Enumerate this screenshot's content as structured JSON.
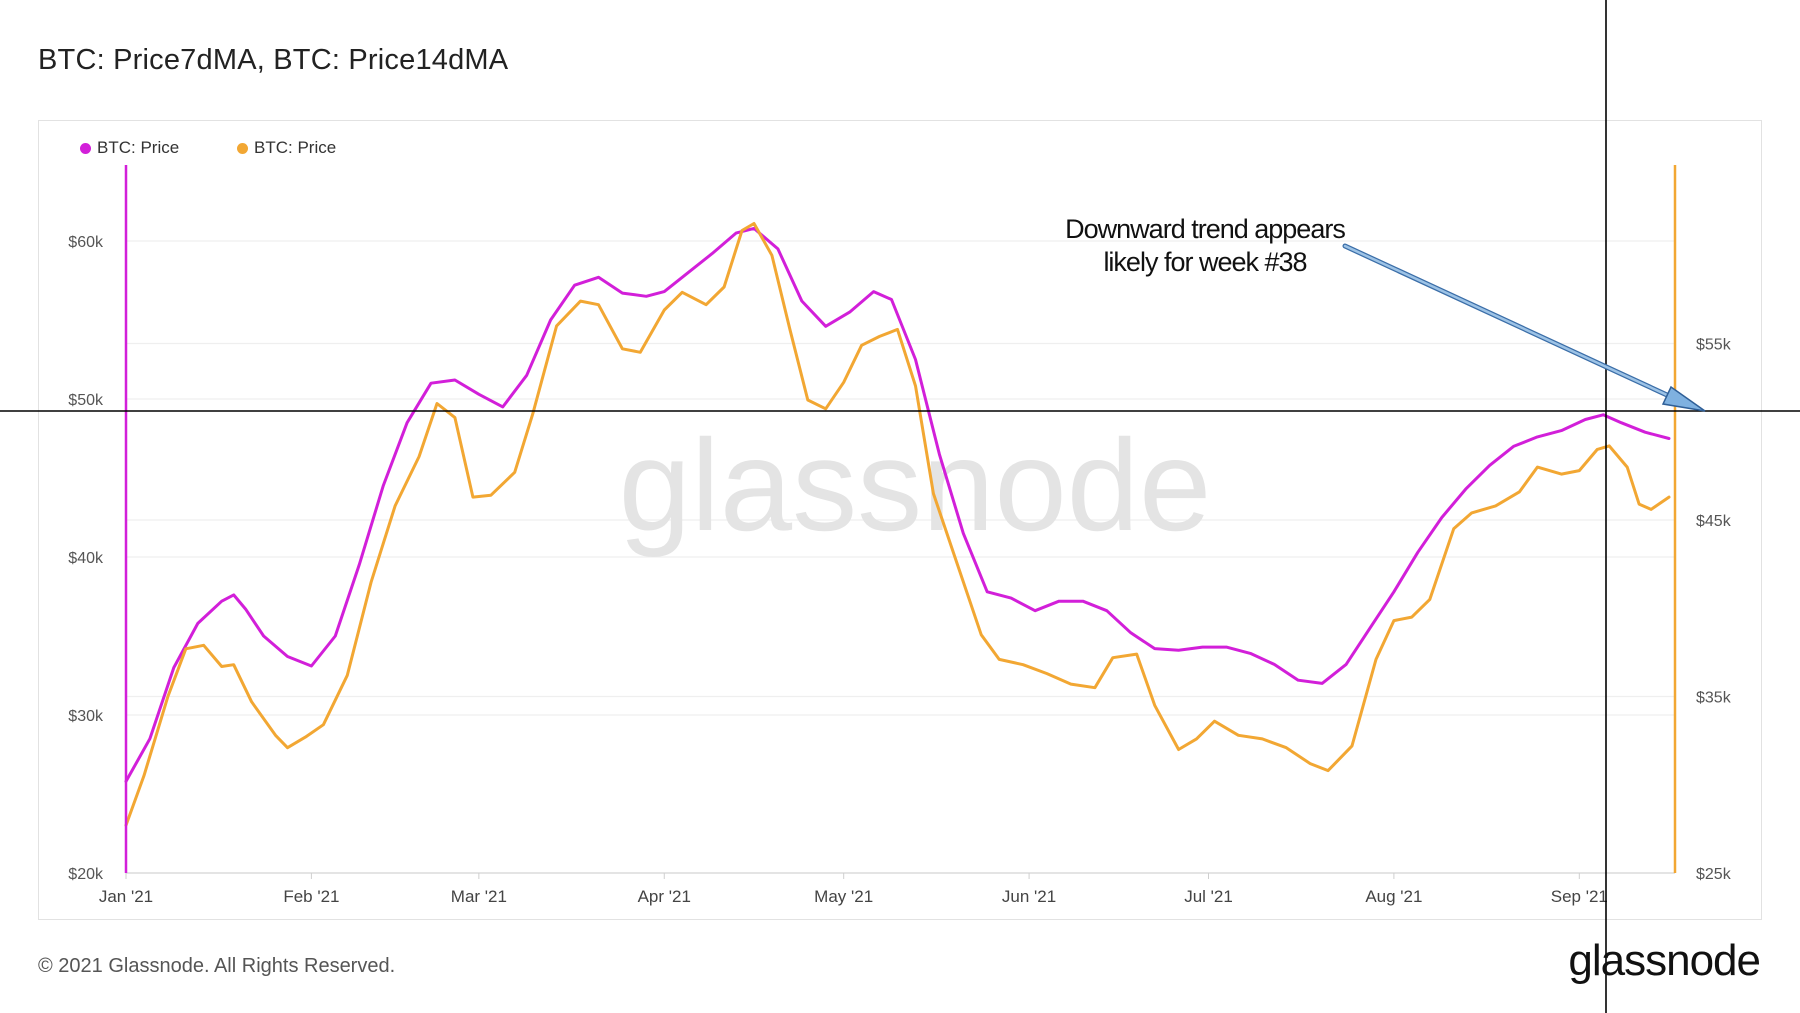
{
  "title": "BTC: Price7dMA, BTC: Price14dMA",
  "footer": "© 2021 Glassnode. All Rights Reserved.",
  "brand": "glassnode",
  "watermark": "glassnode",
  "legend": [
    {
      "label": "BTC: Price",
      "color": "#d21fd9"
    },
    {
      "label": "BTC: Price",
      "color": "#f2a733"
    }
  ],
  "annotation": {
    "line1": "Downward trend appears",
    "line2": "likely for week #38"
  },
  "chart_data": {
    "type": "line",
    "xlabels": [
      "Jan '21",
      "Feb '21",
      "Mar '21",
      "Apr '21",
      "May '21",
      "Jun '21",
      "Jul '21",
      "Aug '21",
      "Sep '21"
    ],
    "x_start": "2021-01-01",
    "x_end": "2021-09-17",
    "y_left": {
      "ticks": [
        "$20k",
        "$30k",
        "$40k",
        "$50k",
        "$60k"
      ],
      "range": [
        20000,
        64000
      ]
    },
    "y_right": {
      "ticks": [
        "$25k",
        "$35k",
        "$45k",
        "$55k"
      ],
      "range": [
        25000,
        65000
      ]
    },
    "grid": true,
    "legend_position": "top-left",
    "series": [
      {
        "name": "BTC: Price",
        "color": "#d21fd9",
        "axis": "left",
        "points": [
          [
            "2021-01-01",
            25800
          ],
          [
            "2021-01-05",
            28500
          ],
          [
            "2021-01-09",
            33000
          ],
          [
            "2021-01-13",
            35800
          ],
          [
            "2021-01-17",
            37200
          ],
          [
            "2021-01-19",
            37600
          ],
          [
            "2021-01-21",
            36700
          ],
          [
            "2021-01-24",
            35000
          ],
          [
            "2021-01-28",
            33700
          ],
          [
            "2021-02-01",
            33100
          ],
          [
            "2021-02-05",
            35000
          ],
          [
            "2021-02-09",
            39500
          ],
          [
            "2021-02-13",
            44500
          ],
          [
            "2021-02-17",
            48500
          ],
          [
            "2021-02-21",
            51000
          ],
          [
            "2021-02-25",
            51200
          ],
          [
            "2021-03-01",
            50300
          ],
          [
            "2021-03-05",
            49500
          ],
          [
            "2021-03-09",
            51500
          ],
          [
            "2021-03-13",
            55000
          ],
          [
            "2021-03-17",
            57200
          ],
          [
            "2021-03-21",
            57700
          ],
          [
            "2021-03-25",
            56700
          ],
          [
            "2021-03-29",
            56500
          ],
          [
            "2021-04-01",
            56800
          ],
          [
            "2021-04-05",
            58000
          ],
          [
            "2021-04-09",
            59200
          ],
          [
            "2021-04-13",
            60500
          ],
          [
            "2021-04-16",
            60800
          ],
          [
            "2021-04-20",
            59500
          ],
          [
            "2021-04-24",
            56200
          ],
          [
            "2021-04-28",
            54600
          ],
          [
            "2021-05-02",
            55500
          ],
          [
            "2021-05-06",
            56800
          ],
          [
            "2021-05-09",
            56300
          ],
          [
            "2021-05-13",
            52500
          ],
          [
            "2021-05-17",
            46500
          ],
          [
            "2021-05-21",
            41500
          ],
          [
            "2021-05-25",
            37800
          ],
          [
            "2021-05-29",
            37400
          ],
          [
            "2021-06-02",
            36600
          ],
          [
            "2021-06-06",
            37200
          ],
          [
            "2021-06-10",
            37200
          ],
          [
            "2021-06-14",
            36600
          ],
          [
            "2021-06-18",
            35200
          ],
          [
            "2021-06-22",
            34200
          ],
          [
            "2021-06-26",
            34100
          ],
          [
            "2021-06-30",
            34300
          ],
          [
            "2021-07-04",
            34300
          ],
          [
            "2021-07-08",
            33900
          ],
          [
            "2021-07-12",
            33200
          ],
          [
            "2021-07-16",
            32200
          ],
          [
            "2021-07-20",
            32000
          ],
          [
            "2021-07-24",
            33200
          ],
          [
            "2021-07-28",
            35500
          ],
          [
            "2021-08-01",
            37800
          ],
          [
            "2021-08-05",
            40300
          ],
          [
            "2021-08-09",
            42500
          ],
          [
            "2021-08-13",
            44300
          ],
          [
            "2021-08-17",
            45800
          ],
          [
            "2021-08-21",
            47000
          ],
          [
            "2021-08-25",
            47600
          ],
          [
            "2021-08-29",
            48000
          ],
          [
            "2021-09-02",
            48700
          ],
          [
            "2021-09-05",
            49000
          ],
          [
            "2021-09-08",
            48500
          ],
          [
            "2021-09-12",
            47900
          ],
          [
            "2021-09-16",
            47500
          ]
        ]
      },
      {
        "name": "BTC: Price",
        "color": "#f2a733",
        "axis": "right",
        "points": [
          [
            "2021-01-01",
            27700
          ],
          [
            "2021-01-04",
            30500
          ],
          [
            "2021-01-08",
            35000
          ],
          [
            "2021-01-11",
            37700
          ],
          [
            "2021-01-14",
            37900
          ],
          [
            "2021-01-17",
            36700
          ],
          [
            "2021-01-19",
            36800
          ],
          [
            "2021-01-22",
            34700
          ],
          [
            "2021-01-26",
            32800
          ],
          [
            "2021-01-28",
            32100
          ],
          [
            "2021-01-31",
            32700
          ],
          [
            "2021-02-03",
            33400
          ],
          [
            "2021-02-07",
            36200
          ],
          [
            "2021-02-11",
            41500
          ],
          [
            "2021-02-15",
            45800
          ],
          [
            "2021-02-19",
            48600
          ],
          [
            "2021-02-22",
            51600
          ],
          [
            "2021-02-25",
            50800
          ],
          [
            "2021-02-28",
            46300
          ],
          [
            "2021-03-03",
            46400
          ],
          [
            "2021-03-07",
            47700
          ],
          [
            "2021-03-10",
            51000
          ],
          [
            "2021-03-14",
            56000
          ],
          [
            "2021-03-18",
            57400
          ],
          [
            "2021-03-21",
            57200
          ],
          [
            "2021-03-25",
            54700
          ],
          [
            "2021-03-28",
            54500
          ],
          [
            "2021-04-01",
            56900
          ],
          [
            "2021-04-04",
            57900
          ],
          [
            "2021-04-08",
            57200
          ],
          [
            "2021-04-11",
            58200
          ],
          [
            "2021-04-14",
            61400
          ],
          [
            "2021-04-16",
            61800
          ],
          [
            "2021-04-19",
            60000
          ],
          [
            "2021-04-22",
            55800
          ],
          [
            "2021-04-25",
            51800
          ],
          [
            "2021-04-28",
            51300
          ],
          [
            "2021-05-01",
            52800
          ],
          [
            "2021-05-04",
            54900
          ],
          [
            "2021-05-07",
            55400
          ],
          [
            "2021-05-10",
            55800
          ],
          [
            "2021-05-13",
            52600
          ],
          [
            "2021-05-16",
            46500
          ],
          [
            "2021-05-20",
            42500
          ],
          [
            "2021-05-24",
            38500
          ],
          [
            "2021-05-27",
            37100
          ],
          [
            "2021-05-31",
            36800
          ],
          [
            "2021-06-04",
            36300
          ],
          [
            "2021-06-08",
            35700
          ],
          [
            "2021-06-12",
            35500
          ],
          [
            "2021-06-15",
            37200
          ],
          [
            "2021-06-19",
            37400
          ],
          [
            "2021-06-22",
            34500
          ],
          [
            "2021-06-26",
            32000
          ],
          [
            "2021-06-29",
            32600
          ],
          [
            "2021-07-02",
            33600
          ],
          [
            "2021-07-06",
            32800
          ],
          [
            "2021-07-10",
            32600
          ],
          [
            "2021-07-14",
            32100
          ],
          [
            "2021-07-18",
            31200
          ],
          [
            "2021-07-21",
            30800
          ],
          [
            "2021-07-25",
            32200
          ],
          [
            "2021-07-29",
            37100
          ],
          [
            "2021-08-01",
            39300
          ],
          [
            "2021-08-04",
            39500
          ],
          [
            "2021-08-07",
            40500
          ],
          [
            "2021-08-11",
            44500
          ],
          [
            "2021-08-14",
            45400
          ],
          [
            "2021-08-18",
            45800
          ],
          [
            "2021-08-22",
            46600
          ],
          [
            "2021-08-25",
            48000
          ],
          [
            "2021-08-29",
            47600
          ],
          [
            "2021-09-01",
            47800
          ],
          [
            "2021-09-04",
            49000
          ],
          [
            "2021-09-06",
            49200
          ],
          [
            "2021-09-09",
            48000
          ],
          [
            "2021-09-11",
            45900
          ],
          [
            "2021-09-13",
            45600
          ],
          [
            "2021-09-16",
            46300
          ]
        ]
      }
    ]
  }
}
